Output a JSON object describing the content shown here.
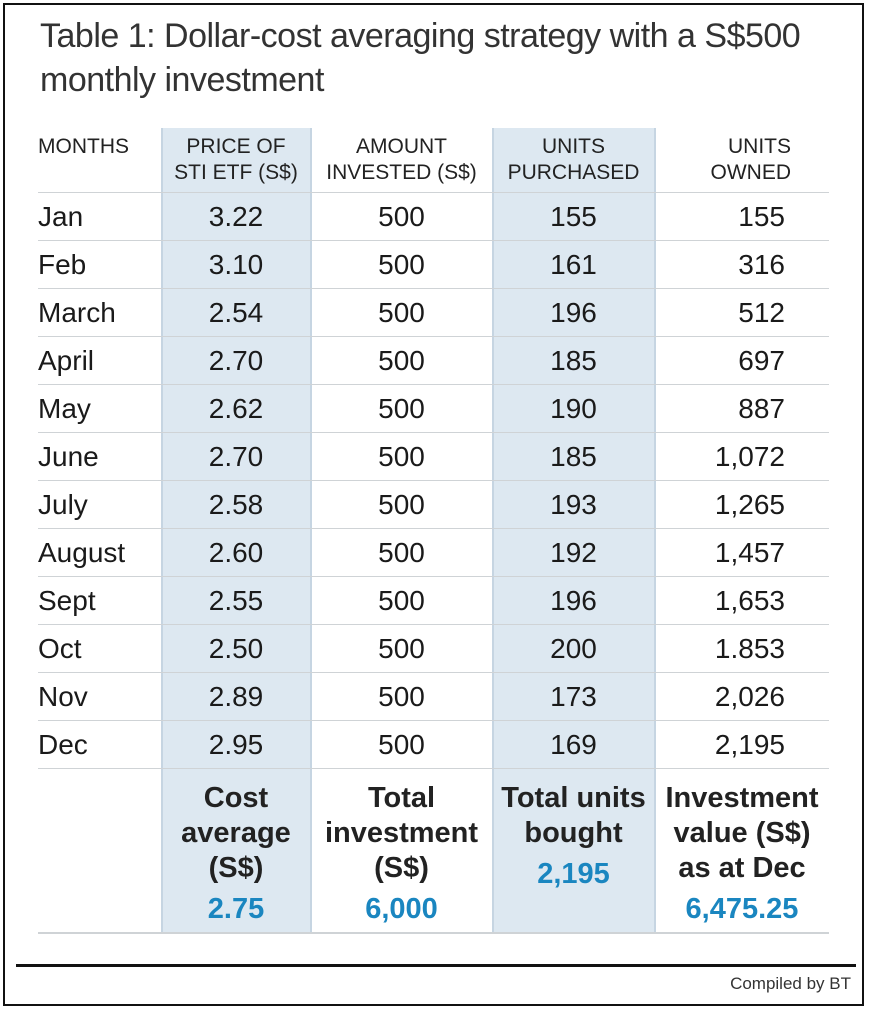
{
  "title": "Table 1: Dollar-cost averaging strategy with a S$500 monthly investment",
  "columns": [
    {
      "line1": "MONTHS",
      "line2": ""
    },
    {
      "line1": "PRICE OF",
      "line2": "STI ETF (S$)"
    },
    {
      "line1": "AMOUNT",
      "line2": "INVESTED (S$)"
    },
    {
      "line1": "UNITS",
      "line2": "PURCHASED"
    },
    {
      "line1": "UNITS",
      "line2": "OWNED"
    }
  ],
  "rows": [
    {
      "month": "Jan",
      "price": "3.22",
      "amount": "500",
      "purchased": "155",
      "owned": "155"
    },
    {
      "month": "Feb",
      "price": "3.10",
      "amount": "500",
      "purchased": "161",
      "owned": "316"
    },
    {
      "month": "March",
      "price": "2.54",
      "amount": "500",
      "purchased": "196",
      "owned": "512"
    },
    {
      "month": "April",
      "price": "2.70",
      "amount": "500",
      "purchased": "185",
      "owned": "697"
    },
    {
      "month": "May",
      "price": "2.62",
      "amount": "500",
      "purchased": "190",
      "owned": "887"
    },
    {
      "month": "June",
      "price": "2.70",
      "amount": "500",
      "purchased": "185",
      "owned": "1,072"
    },
    {
      "month": "July",
      "price": "2.58",
      "amount": "500",
      "purchased": "193",
      "owned": "1,265"
    },
    {
      "month": "August",
      "price": "2.60",
      "amount": "500",
      "purchased": "192",
      "owned": "1,457"
    },
    {
      "month": "Sept",
      "price": "2.55",
      "amount": "500",
      "purchased": "196",
      "owned": "1,653"
    },
    {
      "month": "Oct",
      "price": "2.50",
      "amount": "500",
      "purchased": "200",
      "owned": "1.853"
    },
    {
      "month": "Nov",
      "price": "2.89",
      "amount": "500",
      "purchased": "173",
      "owned": "2,026"
    },
    {
      "month": "Dec",
      "price": "2.95",
      "amount": "500",
      "purchased": "169",
      "owned": "2,195"
    }
  ],
  "summary": {
    "price": {
      "label": "Cost average (S$)",
      "value": "2.75"
    },
    "amount": {
      "label": "Total investment (S$)",
      "value": "6,000"
    },
    "purchased": {
      "label": "Total units bought",
      "value": "2,195"
    },
    "owned": {
      "label": "Investment value (S$) as at Dec",
      "value": "6,475.25"
    }
  },
  "credit": "Compiled by BT",
  "colors": {
    "highlight_column": "#dde8f1",
    "summary_value": "#1a86c0"
  }
}
